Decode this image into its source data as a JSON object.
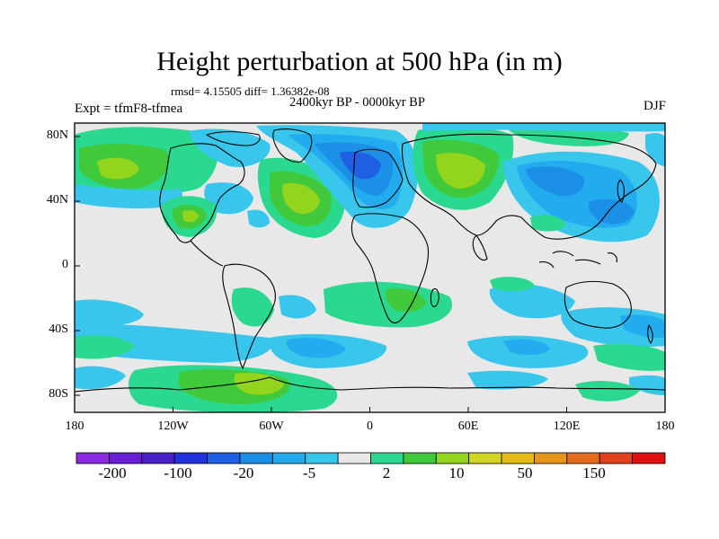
{
  "title": "Height perturbation at 500 hPa (in m)",
  "stats_line": "rmsd= 4.15505 diff= 1.36382e-08",
  "period": "2400kyr BP - 0000kyr BP",
  "experiment": "Expt = tfmF8-tfmea",
  "season": "DJF",
  "y_axis_labels": [
    "80N",
    "40N",
    "0",
    "40S",
    "80S"
  ],
  "x_axis_labels": [
    "180",
    "120W",
    "60W",
    "0",
    "60E",
    "120E",
    "180"
  ],
  "colorbar": {
    "labels": [
      "-200",
      "-100",
      "-20",
      "-5",
      "2",
      "10",
      "50",
      "150"
    ],
    "colors": [
      "#8a2be2",
      "#6a1fd6",
      "#4b20c8",
      "#2233dd",
      "#1f5fe3",
      "#1c8fe6",
      "#22acef",
      "#39c6ec",
      "#e8e8e8",
      "#2ad88f",
      "#40c93a",
      "#93d51c",
      "#d2d622",
      "#e3bb12",
      "#e7941a",
      "#e66a1b",
      "#e2401d",
      "#e01010"
    ]
  },
  "chart_data": {
    "type": "map",
    "title": "Height perturbation at 500 hPa (in m)",
    "variable": "500 hPa height perturbation",
    "units": "m",
    "lon_range": [
      -180,
      180
    ],
    "lat_range": [
      -90,
      90
    ],
    "contour_levels": [
      -200,
      -150,
      -100,
      -50,
      -20,
      -10,
      -5,
      -2,
      2,
      5,
      10,
      20,
      50,
      100,
      150,
      200
    ]
  }
}
